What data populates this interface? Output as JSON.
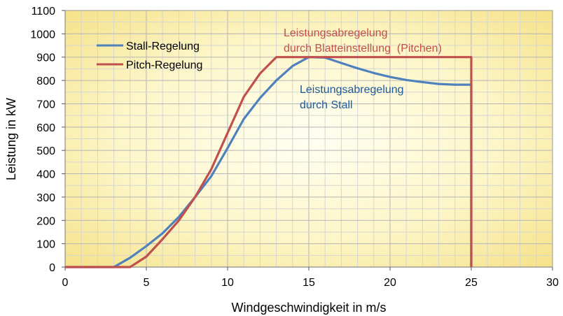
{
  "chart_data": {
    "type": "line",
    "xlabel": "Windgeschwindigkeit in m/s",
    "ylabel": "Leistung in kW",
    "xlim": [
      0,
      30
    ],
    "ylim": [
      0,
      1100
    ],
    "x_ticks": [
      "0",
      "5",
      "10",
      "15",
      "20",
      "25",
      "30"
    ],
    "y_ticks": [
      "0",
      "100",
      "200",
      "300",
      "400",
      "500",
      "600",
      "700",
      "800",
      "900",
      "1000",
      "1100"
    ],
    "grid": true,
    "legend_position": "top-left",
    "background": "yellow radial gradient",
    "series": [
      {
        "name": "Stall-Regelung",
        "color": "#4f81bd",
        "points": [
          [
            0,
            0
          ],
          [
            3,
            0
          ],
          [
            4,
            40
          ],
          [
            5,
            90
          ],
          [
            6,
            145
          ],
          [
            7,
            215
          ],
          [
            8,
            300
          ],
          [
            9,
            390
          ],
          [
            10,
            510
          ],
          [
            11,
            635
          ],
          [
            12,
            725
          ],
          [
            13,
            800
          ],
          [
            14,
            862
          ],
          [
            15,
            900
          ],
          [
            16,
            898
          ],
          [
            17,
            875
          ],
          [
            18,
            852
          ],
          [
            19,
            832
          ],
          [
            20,
            815
          ],
          [
            21,
            802
          ],
          [
            22,
            793
          ],
          [
            23,
            785
          ],
          [
            24,
            782
          ],
          [
            25,
            782
          ],
          [
            25,
            0
          ]
        ]
      },
      {
        "name": "Pitch-Regelung",
        "color": "#c0504d",
        "points": [
          [
            0,
            0
          ],
          [
            4,
            0
          ],
          [
            5,
            45
          ],
          [
            6,
            120
          ],
          [
            7,
            200
          ],
          [
            8,
            300
          ],
          [
            9,
            420
          ],
          [
            10,
            575
          ],
          [
            11,
            730
          ],
          [
            12,
            830
          ],
          [
            13,
            900
          ],
          [
            25,
            900
          ],
          [
            25,
            0
          ]
        ]
      }
    ],
    "annotations": [
      {
        "lines": [
          "Leistungsabregelung",
          "durch Blatteinstellung  (Pitchen)"
        ],
        "color": "#c0504d"
      },
      {
        "lines": [
          "Leistungsabregelung",
          "durch Stall"
        ],
        "color": "#1f5a9a"
      }
    ]
  }
}
